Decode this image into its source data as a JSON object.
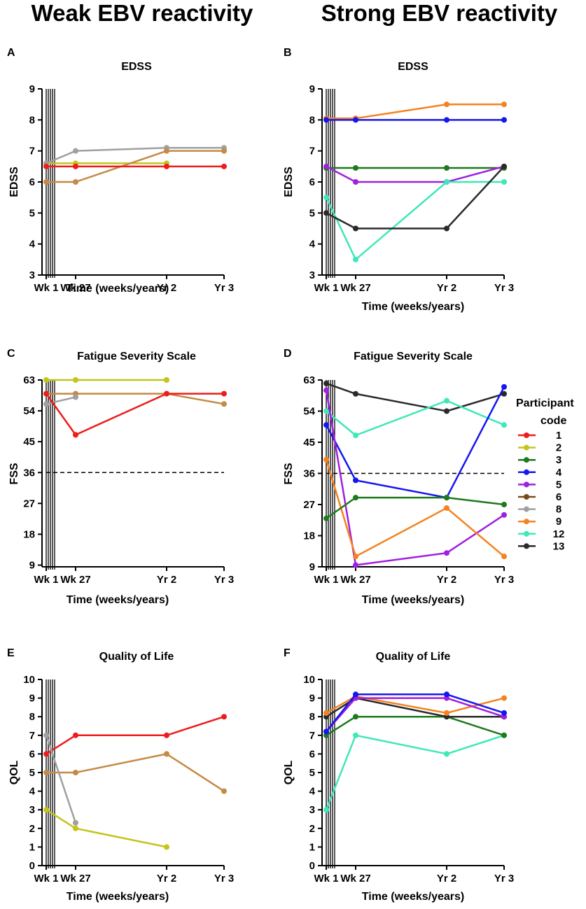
{
  "headings": {
    "left": "Weak EBV reactivity",
    "right": "Strong EBV reactivity"
  },
  "colors": {
    "1": "#ee1c1c",
    "2": "#c4c41c",
    "3": "#1e7a1e",
    "4": "#1616ee",
    "5": "#a020e0",
    "6": "#7a4a1a",
    "8": "#a0a0a0",
    "9": "#f5821f",
    "12": "#3ee8b8",
    "13": "#2a2a2a",
    "6w": "#c48a46"
  },
  "legend": {
    "title_line1": "Participant",
    "title_line2": "code",
    "items": [
      {
        "code": "1",
        "color": "#ee1c1c"
      },
      {
        "code": "2",
        "color": "#c4c41c"
      },
      {
        "code": "3",
        "color": "#1e7a1e"
      },
      {
        "code": "4",
        "color": "#1616ee"
      },
      {
        "code": "5",
        "color": "#a020e0"
      },
      {
        "code": "6",
        "color": "#7a4a1a"
      },
      {
        "code": "8",
        "color": "#a0a0a0"
      },
      {
        "code": "9",
        "color": "#f5821f"
      },
      {
        "code": "12",
        "color": "#3ee8b8"
      },
      {
        "code": "13",
        "color": "#2a2a2a"
      }
    ]
  },
  "chart_data": [
    {
      "panel": "A",
      "type": "line",
      "title": "EDSS",
      "ylabel": "EDSS",
      "xlabel": "Time (weeks/years)",
      "categories": [
        "Wk 1",
        "Wk 27",
        "Yr 2",
        "Yr 3"
      ],
      "yticks": [
        3,
        4,
        5,
        6,
        7,
        8,
        9
      ],
      "ylim": [
        3,
        9
      ],
      "refline": null,
      "series": [
        {
          "name": "2",
          "color": "#c4c41c",
          "values": [
            6.6,
            6.6,
            6.6,
            null
          ]
        },
        {
          "name": "8",
          "color": "#a0a0a0",
          "values": [
            6.6,
            7.0,
            7.1,
            7.1
          ]
        },
        {
          "name": "6",
          "color": "#c48a46",
          "values": [
            6.0,
            6.0,
            7.0,
            7.0
          ]
        },
        {
          "name": "1",
          "color": "#ee1c1c",
          "values": [
            6.5,
            6.5,
            6.5,
            6.5
          ]
        }
      ]
    },
    {
      "panel": "B",
      "type": "line",
      "title": "EDSS",
      "ylabel": "EDSS",
      "xlabel": "Time (weeks/years)",
      "categories": [
        "Wk 1",
        "Wk 27",
        "Yr 2",
        "Yr 3"
      ],
      "yticks": [
        3,
        4,
        5,
        6,
        7,
        8,
        9
      ],
      "ylim": [
        3,
        9
      ],
      "refline": null,
      "series": [
        {
          "name": "9",
          "color": "#f5821f",
          "values": [
            8.05,
            8.05,
            8.5,
            8.5
          ]
        },
        {
          "name": "4",
          "color": "#1616ee",
          "values": [
            8.0,
            8.0,
            8.0,
            8.0
          ]
        },
        {
          "name": "3",
          "color": "#1e7a1e",
          "values": [
            6.45,
            6.45,
            6.45,
            6.45
          ]
        },
        {
          "name": "5",
          "color": "#a020e0",
          "values": [
            6.5,
            6.0,
            6.0,
            6.5
          ]
        },
        {
          "name": "12",
          "color": "#3ee8b8",
          "values": [
            5.5,
            3.5,
            6.0,
            6.0
          ]
        },
        {
          "name": "13",
          "color": "#2a2a2a",
          "values": [
            5.0,
            4.5,
            4.5,
            6.5
          ]
        }
      ]
    },
    {
      "panel": "C",
      "type": "line",
      "title": "Fatigue Severity Scale",
      "ylabel": "FSS",
      "xlabel": "Time (weeks/years)",
      "categories": [
        "Wk 1",
        "Wk 27",
        "Yr 2",
        "Yr 3"
      ],
      "yticks": [
        9,
        18,
        27,
        36,
        45,
        54,
        63
      ],
      "ylim": [
        8.5,
        63
      ],
      "refline": 36,
      "series": [
        {
          "name": "2",
          "color": "#c4c41c",
          "values": [
            63,
            63,
            63,
            null
          ]
        },
        {
          "name": "6",
          "color": "#c48a46",
          "values": [
            59,
            59,
            59,
            56
          ]
        },
        {
          "name": "8",
          "color": "#a0a0a0",
          "values": [
            56,
            58,
            null,
            null
          ]
        },
        {
          "name": "1",
          "color": "#ee1c1c",
          "values": [
            59,
            47,
            59,
            59
          ]
        }
      ]
    },
    {
      "panel": "D",
      "type": "line",
      "title": "Fatigue Severity Scale",
      "ylabel": "FSS",
      "xlabel": "Time (weeks/years)",
      "categories": [
        "Wk 1",
        "Wk 27",
        "Yr 2",
        "Yr 3"
      ],
      "yticks": [
        9,
        18,
        27,
        36,
        45,
        54,
        63
      ],
      "ylim": [
        9,
        63
      ],
      "refline": 36,
      "series": [
        {
          "name": "13",
          "color": "#2a2a2a",
          "values": [
            62,
            59,
            54,
            59
          ]
        },
        {
          "name": "12",
          "color": "#3ee8b8",
          "values": [
            54,
            47,
            57,
            50
          ]
        },
        {
          "name": "4",
          "color": "#1616ee",
          "values": [
            50,
            34,
            29,
            61
          ]
        },
        {
          "name": "5",
          "color": "#a020e0",
          "values": [
            60,
            9.5,
            13,
            24
          ]
        },
        {
          "name": "9",
          "color": "#f5821f",
          "values": [
            40,
            12,
            26,
            12
          ]
        },
        {
          "name": "3",
          "color": "#1e7a1e",
          "values": [
            23,
            29,
            29,
            27
          ]
        }
      ]
    },
    {
      "panel": "E",
      "type": "line",
      "title": "Quality of Life",
      "ylabel": "QOL",
      "xlabel": "Time (weeks/years)",
      "categories": [
        "Wk 1",
        "Wk 27",
        "Yr 2",
        "Yr 3"
      ],
      "yticks": [
        0,
        1,
        2,
        3,
        4,
        5,
        6,
        7,
        8,
        9,
        10
      ],
      "ylim": [
        0,
        10
      ],
      "refline": null,
      "series": [
        {
          "name": "1",
          "color": "#ee1c1c",
          "values": [
            6,
            7,
            7,
            8
          ]
        },
        {
          "name": "6",
          "color": "#c48a46",
          "values": [
            5,
            5,
            6,
            4
          ]
        },
        {
          "name": "8",
          "color": "#a0a0a0",
          "values": [
            7,
            2.3,
            null,
            null
          ]
        },
        {
          "name": "2",
          "color": "#c4c41c",
          "values": [
            3,
            2,
            1,
            null
          ]
        }
      ]
    },
    {
      "panel": "F",
      "type": "line",
      "title": "Quality of Life",
      "ylabel": "QOL",
      "xlabel": "Time (weeks/years)",
      "categories": [
        "Wk 1",
        "Wk 27",
        "Yr 2",
        "Yr 3"
      ],
      "yticks": [
        0,
        1,
        2,
        3,
        4,
        5,
        6,
        7,
        8,
        9,
        10
      ],
      "ylim": [
        0,
        10
      ],
      "refline": null,
      "series": [
        {
          "name": "12",
          "color": "#3ee8b8",
          "values": [
            3,
            7,
            6,
            7
          ]
        },
        {
          "name": "3",
          "color": "#1e7a1e",
          "values": [
            7,
            8,
            8,
            7
          ]
        },
        {
          "name": "13",
          "color": "#2a2a2a",
          "values": [
            8,
            9,
            8,
            8
          ]
        },
        {
          "name": "9",
          "color": "#f5821f",
          "values": [
            8.2,
            9.1,
            8.2,
            9
          ]
        },
        {
          "name": "5",
          "color": "#a020e0",
          "values": [
            7.2,
            9,
            9,
            8
          ]
        },
        {
          "name": "4",
          "color": "#1616ee",
          "values": [
            7.2,
            9.2,
            9.2,
            8.2
          ]
        }
      ]
    }
  ]
}
